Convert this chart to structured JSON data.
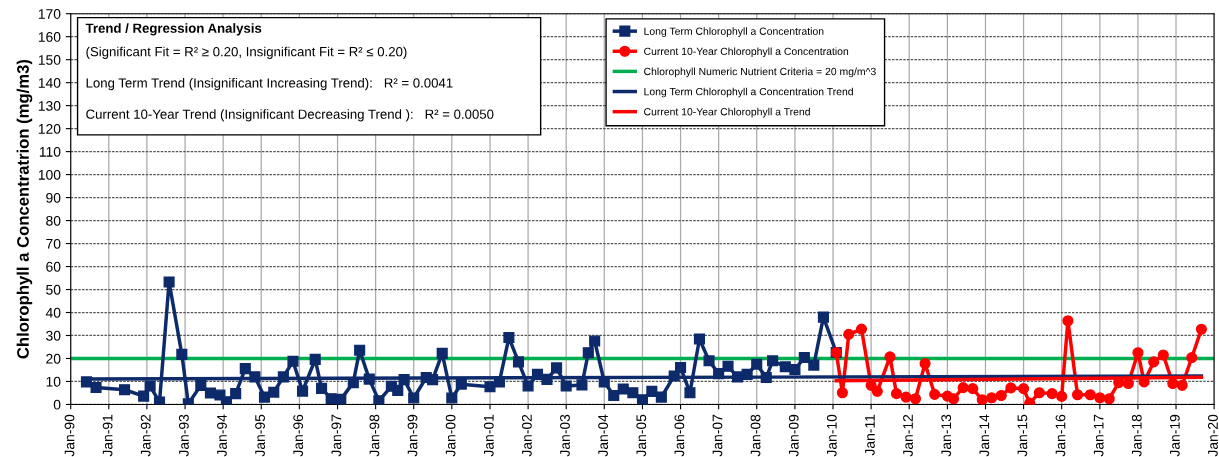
{
  "chart_data": {
    "type": "line",
    "ylabel": "Chlorophyll a Concentratrion (mg/m3)",
    "ylim": [
      0,
      170
    ],
    "yticks": [
      0,
      10,
      20,
      30,
      40,
      50,
      60,
      70,
      80,
      90,
      100,
      110,
      120,
      130,
      140,
      150,
      160,
      170
    ],
    "xlim": [
      "1990-01",
      "2020-01"
    ],
    "xticks": [
      {
        "value": "1990-01",
        "label": "Jan-90"
      },
      {
        "value": "1991-01",
        "label": "Jan-91"
      },
      {
        "value": "1992-01",
        "label": "Jan-92"
      },
      {
        "value": "1993-01",
        "label": "Jan-93"
      },
      {
        "value": "1994-01",
        "label": "Jan-94"
      },
      {
        "value": "1995-01",
        "label": "Jan-95"
      },
      {
        "value": "1996-01",
        "label": "Jan-96"
      },
      {
        "value": "1997-01",
        "label": "Jan-97"
      },
      {
        "value": "1998-01",
        "label": "Jan-98"
      },
      {
        "value": "1999-01",
        "label": "Jan-99"
      },
      {
        "value": "2000-01",
        "label": "Jan-00"
      },
      {
        "value": "2001-01",
        "label": "Jan-01"
      },
      {
        "value": "2002-01",
        "label": "Jan-02"
      },
      {
        "value": "2003-01",
        "label": "Jan-03"
      },
      {
        "value": "2004-01",
        "label": "Jan-04"
      },
      {
        "value": "2005-01",
        "label": "Jan-05"
      },
      {
        "value": "2006-01",
        "label": "Jan-06"
      },
      {
        "value": "2007-01",
        "label": "Jan-07"
      },
      {
        "value": "2008-01",
        "label": "Jan-08"
      },
      {
        "value": "2009-01",
        "label": "Jan-09"
      },
      {
        "value": "2010-01",
        "label": "Jan-10"
      },
      {
        "value": "2011-01",
        "label": "Jan-11"
      },
      {
        "value": "2012-01",
        "label": "Jan-12"
      },
      {
        "value": "2013-01",
        "label": "Jan-13"
      },
      {
        "value": "2014-01",
        "label": "Jan-14"
      },
      {
        "value": "2015-01",
        "label": "Jan-15"
      },
      {
        "value": "2016-01",
        "label": "Jan-16"
      },
      {
        "value": "2017-01",
        "label": "Jan-17"
      },
      {
        "value": "2018-01",
        "label": "Jan-18"
      },
      {
        "value": "2019-01",
        "label": "Jan-19"
      },
      {
        "value": "2020-01",
        "label": "Jan-20"
      }
    ],
    "grid": true,
    "legend": "top",
    "line_style": "solid",
    "series": [
      {
        "name": "Long Term Chlorophyll a Concentration",
        "color": "#0d2a6b",
        "marker": "square",
        "x": [
          "1990-06",
          "1990-09",
          "1991-06",
          "1991-12",
          "1992-02",
          "1992-05",
          "1992-08",
          "1992-12",
          "1993-02",
          "1993-06",
          "1993-09",
          "1993-12",
          "1994-02",
          "1994-05",
          "1994-08",
          "1994-11",
          "1995-02",
          "1995-05",
          "1995-08",
          "1995-11",
          "1996-02",
          "1996-06",
          "1996-08",
          "1996-11",
          "1997-02",
          "1997-06",
          "1997-08",
          "1997-11",
          "1998-02",
          "1998-06",
          "1998-08",
          "1998-10",
          "1999-01",
          "1999-05",
          "1999-07",
          "1999-10",
          "2000-01",
          "2000-04",
          "2001-01",
          "2001-04",
          "2001-07",
          "2001-10",
          "2002-01",
          "2002-04",
          "2002-07",
          "2002-10",
          "2003-01",
          "2003-06",
          "2003-08",
          "2003-10",
          "2004-01",
          "2004-04",
          "2004-07",
          "2004-10",
          "2005-01",
          "2005-04",
          "2005-07",
          "2005-11",
          "2006-01",
          "2006-04",
          "2006-07",
          "2006-10",
          "2007-01",
          "2007-04",
          "2007-07",
          "2007-10",
          "2008-01",
          "2008-04",
          "2008-06",
          "2008-10",
          "2009-01",
          "2009-04",
          "2009-07",
          "2009-10",
          "2010-02"
        ],
        "values": [
          9.8,
          7.4,
          6.4,
          3.6,
          8.0,
          1.0,
          53.3,
          21.8,
          0.3,
          8.3,
          5.0,
          4.1,
          1.2,
          4.7,
          15.6,
          12.0,
          3.2,
          5.3,
          12.0,
          18.8,
          5.8,
          19.6,
          7.0,
          2.5,
          2.2,
          9.5,
          23.6,
          11.0,
          1.6,
          7.9,
          6.1,
          10.8,
          2.8,
          11.7,
          10.8,
          22.2,
          2.8,
          8.8,
          7.7,
          9.8,
          29.1,
          18.5,
          8.0,
          13.1,
          10.9,
          15.9,
          8.0,
          8.5,
          22.5,
          27.6,
          9.8,
          3.9,
          6.7,
          5.1,
          2.0,
          5.7,
          3.2,
          12.4,
          16.1,
          5.1,
          28.5,
          19.0,
          13.4,
          16.6,
          12.0,
          13.1,
          17.5,
          11.7,
          19.0,
          16.4,
          15.2,
          20.4,
          17.1,
          38.0,
          22.6
        ]
      },
      {
        "name": "Current 10-Year Chlorophyll a Concentration",
        "color": "#ff0000",
        "marker": "circle",
        "x": [
          "2010-02",
          "2010-04",
          "2010-06",
          "2010-10",
          "2011-01",
          "2011-03",
          "2011-07",
          "2011-09",
          "2011-12",
          "2012-03",
          "2012-06",
          "2012-09",
          "2013-01",
          "2013-03",
          "2013-06",
          "2013-09",
          "2013-12",
          "2014-03",
          "2014-06",
          "2014-09",
          "2015-01",
          "2015-03",
          "2015-06",
          "2015-10",
          "2016-01",
          "2016-03",
          "2016-06",
          "2016-10",
          "2017-01",
          "2017-04",
          "2017-07",
          "2017-10",
          "2018-01",
          "2018-03",
          "2018-06",
          "2018-09",
          "2018-12",
          "2019-03",
          "2019-06",
          "2019-09"
        ],
        "values": [
          22.6,
          5.1,
          30.5,
          32.8,
          8.3,
          5.7,
          20.7,
          4.7,
          3.2,
          2.5,
          17.8,
          4.4,
          3.6,
          2.5,
          7.3,
          6.9,
          2.0,
          2.9,
          3.9,
          7.2,
          6.9,
          0.6,
          5.1,
          4.7,
          3.5,
          36.4,
          4.2,
          4.2,
          2.9,
          2.5,
          9.5,
          9.1,
          22.5,
          9.8,
          18.5,
          21.5,
          9.1,
          8.3,
          20.4,
          32.7
        ]
      },
      {
        "name": "Long Term Chlorophyll a Concentration Trend",
        "color": "#0d2a6b",
        "marker": "none",
        "x": [
          "1990-06",
          "2019-09"
        ],
        "values": [
          11.1,
          12.4
        ]
      },
      {
        "name": "Current 10-Year Chlorophyll a Trend",
        "color": "#ff0000",
        "marker": "none",
        "x": [
          "2010-02",
          "2019-09"
        ],
        "values": [
          10.3,
          11.8
        ]
      }
    ],
    "ref_lines": [
      {
        "axis": "y",
        "value": 20,
        "label": "Chlorophyll Numeric Nutrient Criteria = 20 mg/m^3",
        "color": "#00b050"
      }
    ],
    "annotations": [
      "Trend / Regression Analysis",
      "(Significant Fit = R² ≥ 0.20, Insignificant Fit = R² ≤ 0.20)",
      "Long Term Trend (Insignificant Increasing Trend):   R² = 0.0041",
      "Current 10-Year Trend (Insignificant Decreasing Trend ):   R² = 0.0050"
    ]
  }
}
